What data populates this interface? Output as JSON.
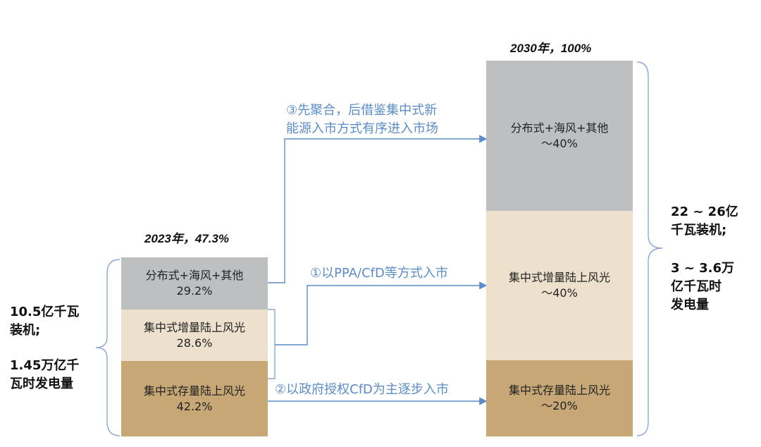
{
  "colors": {
    "gray": "#bdbfc1",
    "cream": "#ede0cc",
    "tan": "#c7a775",
    "blue": "#5b8cc7",
    "bracket": "#8aa7cf"
  },
  "left_bar": {
    "title": "2023年，47.3%",
    "segments": [
      {
        "name": "分布式+海风+其他",
        "share": "29.2%"
      },
      {
        "name": "集中式增量陆上风光",
        "share": "28.6%"
      },
      {
        "name": "集中式存量陆上风光",
        "share": "42.2%"
      }
    ],
    "side_text": {
      "line1": "10.5亿千瓦",
      "line2": "装机;",
      "line3": "1.45万亿千",
      "line4": "瓦时发电量"
    }
  },
  "right_bar": {
    "title": "2030年，100%",
    "segments": [
      {
        "name": "分布式+海风+其他",
        "share": "～40%"
      },
      {
        "name": "集中式增量陆上风光",
        "share": "～40%"
      },
      {
        "name": "集中式存量陆上风光",
        "share": "～20%"
      }
    ],
    "side_text": {
      "line1": "22 ~ 26亿",
      "line2": "千瓦装机;",
      "line3": "3 ~ 3.6万",
      "line4": "亿千瓦时",
      "line5": "发电量"
    }
  },
  "paths": {
    "path1": "①以PPA/CfD等方式入市",
    "path2": "②以政府授权CfD为主逐步入市",
    "path3_line1": "③先聚合，后借鉴集中式新",
    "path3_line2": "能源入市方式有序进入市场"
  }
}
